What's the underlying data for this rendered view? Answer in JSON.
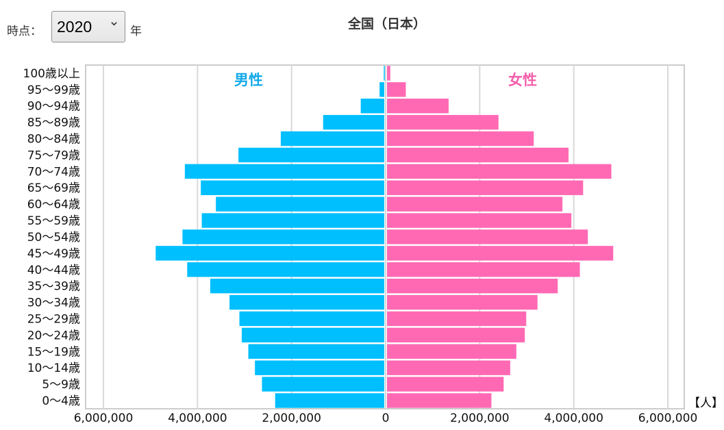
{
  "controls": {
    "time_label": "時点：",
    "year_value": "2020",
    "year_options": [
      "2020"
    ],
    "year_suffix": "年"
  },
  "colors": {
    "male": "#00BFFF",
    "female": "#FF69B4",
    "male_label": "#12A9E8",
    "female_label": "#F35FAB",
    "grid": "#d9d9d9"
  },
  "chart_data": {
    "type": "bar",
    "orientation": "horizontal-population-pyramid",
    "title": "全国（日本）",
    "unit": "【人】",
    "categories": [
      "0～4歳",
      "5～9歳",
      "10～14歳",
      "15～19歳",
      "20～24歳",
      "25～29歳",
      "30～34歳",
      "35～39歳",
      "40～44歳",
      "45～49歳",
      "50～54歳",
      "55～59歳",
      "60～64歳",
      "65～69歳",
      "70～74歳",
      "75～79歳",
      "80～84歳",
      "85～89歳",
      "90～94歳",
      "95～99歳",
      "100歳以上"
    ],
    "series": [
      {
        "name": "男性",
        "values": [
          2320000,
          2600000,
          2750000,
          2890000,
          3030000,
          3080000,
          3290000,
          3700000,
          4190000,
          4860000,
          4290000,
          3880000,
          3580000,
          3900000,
          4240000,
          3100000,
          2200000,
          1300000,
          500000,
          100000,
          10000
        ]
      },
      {
        "name": "女性",
        "values": [
          2220000,
          2480000,
          2620000,
          2750000,
          2930000,
          2960000,
          3200000,
          3630000,
          4100000,
          4810000,
          4270000,
          3920000,
          3730000,
          4170000,
          4770000,
          3860000,
          3120000,
          2370000,
          1310000,
          400000,
          70000
        ]
      }
    ],
    "xlim": [
      -6000000,
      6000000
    ],
    "x_ticks": [
      "6,000,000",
      "4,000,000",
      "2,000,000",
      "0",
      "2,000,000",
      "4,000,000",
      "6,000,000"
    ],
    "grid": true
  }
}
